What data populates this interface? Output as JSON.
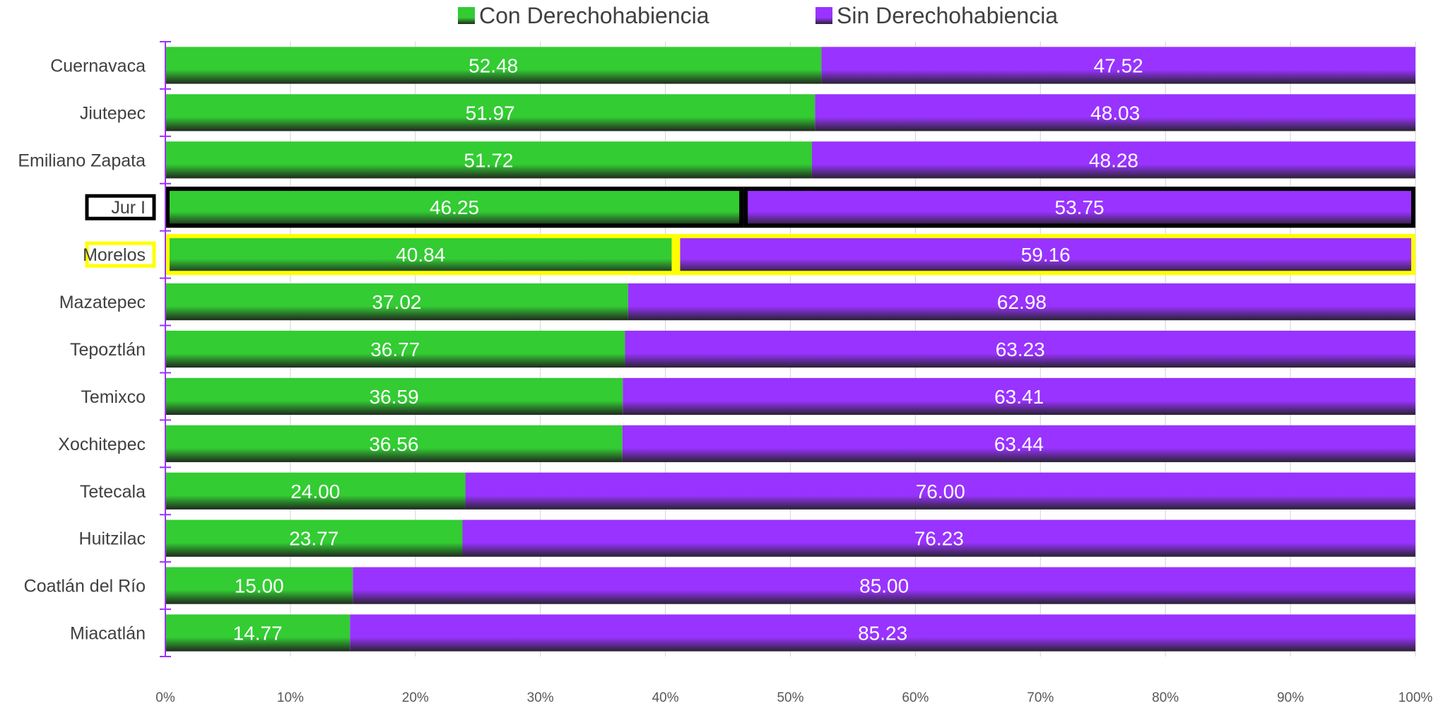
{
  "chart_data": {
    "type": "bar",
    "orientation": "horizontal",
    "stacked": "percent",
    "categories": [
      "Cuernavaca",
      "Jiutepec",
      "Emiliano Zapata",
      "Jur I",
      "Morelos",
      "Mazatepec",
      "Tepoztlán",
      "Temixco",
      "Xochitepec",
      "Tetecala",
      "Huitzilac",
      "Coatlán del Río",
      "Miacatlán"
    ],
    "series": [
      {
        "name": "Con Derechohabiencia",
        "color": "#33cc33",
        "values": [
          52.48,
          51.97,
          51.72,
          46.25,
          40.84,
          37.02,
          36.77,
          36.59,
          36.56,
          24.0,
          23.77,
          15.0,
          14.77
        ]
      },
      {
        "name": "Sin Derechohabiencia",
        "color": "#9933ff",
        "values": [
          47.52,
          48.03,
          48.28,
          53.75,
          59.16,
          62.98,
          63.23,
          63.41,
          63.44,
          76.0,
          76.23,
          85.0,
          85.23
        ]
      }
    ],
    "value_labels": [
      [
        "52.48",
        "51.97",
        "51.72",
        "46.25",
        "40.84",
        "37.02",
        "36.77",
        "36.59",
        "36.56",
        "24.00",
        "23.77",
        "15.00",
        "14.77"
      ],
      [
        "47.52",
        "48.03",
        "48.28",
        "53.75",
        "59.16",
        "62.98",
        "63.23",
        "63.41",
        "63.44",
        "76.00",
        "76.23",
        "85.00",
        "85.23"
      ]
    ],
    "x_ticks": [
      "0%",
      "10%",
      "20%",
      "30%",
      "40%",
      "50%",
      "60%",
      "70%",
      "80%",
      "90%",
      "100%"
    ],
    "xlim": [
      0,
      100
    ],
    "grid": "vertical",
    "legend_position": "top",
    "highlights": [
      {
        "category": "Jur I",
        "outline_color": "#000000"
      },
      {
        "category": "Morelos",
        "outline_color": "#ffff00"
      }
    ]
  }
}
